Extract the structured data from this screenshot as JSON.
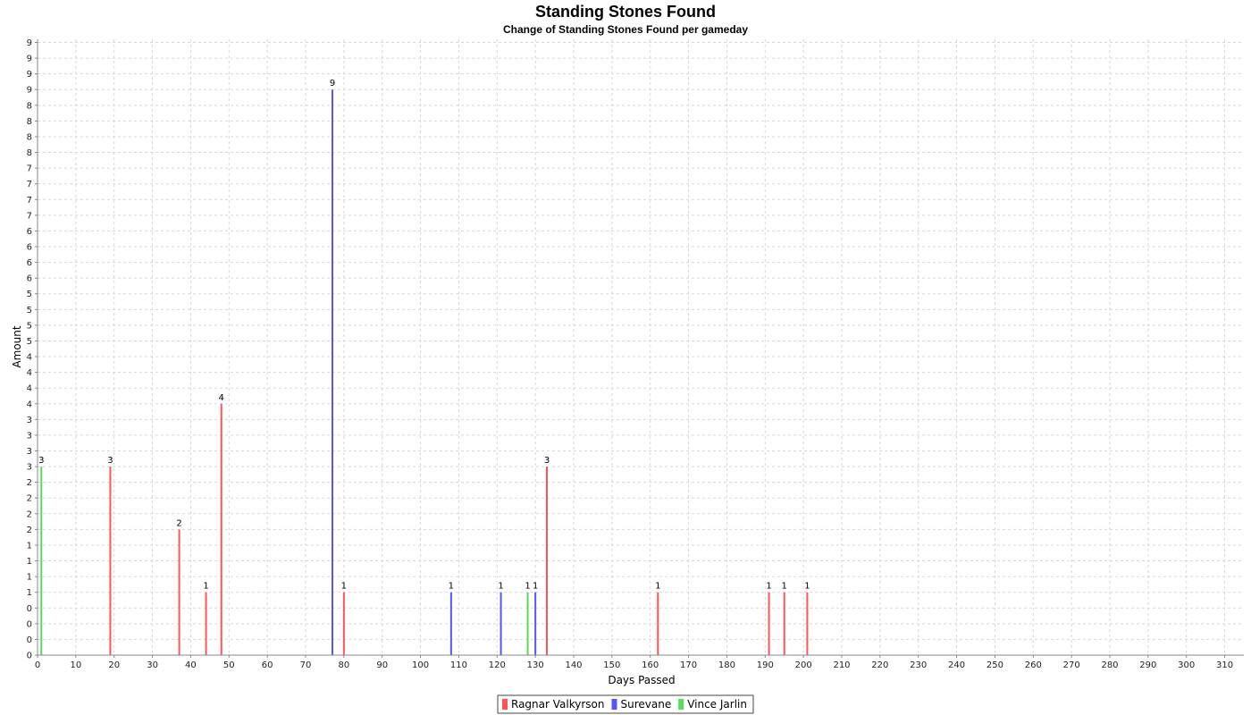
{
  "chart_data": {
    "type": "bar",
    "title": "Standing Stones Found",
    "subtitle": "Change of Standing Stones Found per gameday",
    "xlabel": "Days Passed",
    "ylabel": "Amount",
    "xlim": [
      0,
      315
    ],
    "ylim": [
      0,
      9.8
    ],
    "x_ticks": [
      0,
      10,
      20,
      30,
      40,
      50,
      60,
      70,
      80,
      90,
      100,
      110,
      120,
      130,
      140,
      150,
      160,
      170,
      180,
      190,
      200,
      210,
      220,
      230,
      240,
      250,
      260,
      270,
      280,
      290,
      300,
      310
    ],
    "y_tick_step": 0.25,
    "grid": true,
    "legend_position": "bottom",
    "series": [
      {
        "name": "Ragnar Valkyrson",
        "color": "#ff5555",
        "points": [
          [
            19,
            3
          ],
          [
            37,
            2
          ],
          [
            44,
            1
          ],
          [
            48,
            4
          ],
          [
            80,
            1
          ],
          [
            133,
            3
          ],
          [
            162,
            1
          ],
          [
            191,
            1
          ],
          [
            195,
            1
          ],
          [
            201,
            1
          ]
        ]
      },
      {
        "name": "Surevane",
        "color": "#5555ff",
        "points": [
          [
            77,
            9
          ],
          [
            108,
            1
          ],
          [
            121,
            1
          ],
          [
            130,
            1
          ]
        ]
      },
      {
        "name": "Vince Jarlin",
        "color": "#55dd55",
        "points": [
          [
            1,
            3
          ],
          [
            128,
            1
          ]
        ]
      }
    ]
  }
}
